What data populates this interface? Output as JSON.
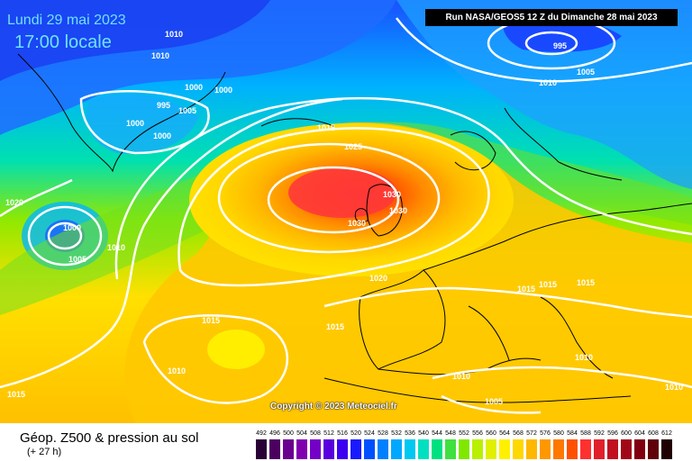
{
  "header": {
    "date": "Lundi 29 mai 2023",
    "time": "17:00 locale",
    "run": "Run NASA/GEOS5 12 Z du Dimanche 28 mai 2023"
  },
  "copyright": "Copyright © 2023 Meteociel.fr",
  "legend": {
    "title": "Géop. Z500 & pression au sol",
    "subtitle": "(+ 27 h)",
    "scale": [
      {
        "label": "492",
        "color": "#2a0036"
      },
      {
        "label": "496",
        "color": "#4b0060"
      },
      {
        "label": "500",
        "color": "#6a0090"
      },
      {
        "label": "504",
        "color": "#8000b0"
      },
      {
        "label": "508",
        "color": "#7400c8"
      },
      {
        "label": "512",
        "color": "#5a00dc"
      },
      {
        "label": "516",
        "color": "#3c00f0"
      },
      {
        "label": "520",
        "color": "#1a1aff"
      },
      {
        "label": "524",
        "color": "#0050ff"
      },
      {
        "label": "528",
        "color": "#0080ff"
      },
      {
        "label": "532",
        "color": "#00a8ff"
      },
      {
        "label": "536",
        "color": "#00c8f0"
      },
      {
        "label": "540",
        "color": "#00e0c0"
      },
      {
        "label": "544",
        "color": "#00e080"
      },
      {
        "label": "548",
        "color": "#40e040"
      },
      {
        "label": "552",
        "color": "#80e800"
      },
      {
        "label": "556",
        "color": "#b8f000"
      },
      {
        "label": "560",
        "color": "#e0f000"
      },
      {
        "label": "564",
        "color": "#fff000"
      },
      {
        "label": "568",
        "color": "#ffd800"
      },
      {
        "label": "572",
        "color": "#ffb800"
      },
      {
        "label": "576",
        "color": "#ff9800"
      },
      {
        "label": "580",
        "color": "#ff7800"
      },
      {
        "label": "584",
        "color": "#ff5000"
      },
      {
        "label": "588",
        "color": "#ff3030"
      },
      {
        "label": "592",
        "color": "#e0202a"
      },
      {
        "label": "596",
        "color": "#c01020"
      },
      {
        "label": "600",
        "color": "#a00818"
      },
      {
        "label": "604",
        "color": "#800010"
      },
      {
        "label": "608",
        "color": "#600008"
      },
      {
        "label": "612",
        "color": "#200000"
      }
    ]
  },
  "isobars": [
    "1010",
    "1010",
    "1000",
    "1000",
    "995",
    "1005",
    "1000",
    "1000",
    "995",
    "1005",
    "1010",
    "1015",
    "1025",
    "1030",
    "1030",
    "1030",
    "1020",
    "1010",
    "1000",
    "1005",
    "1020",
    "1015",
    "1015",
    "1015",
    "1010",
    "1015",
    "1015",
    "1010",
    "1005",
    "1015",
    "1010",
    "1010"
  ]
}
